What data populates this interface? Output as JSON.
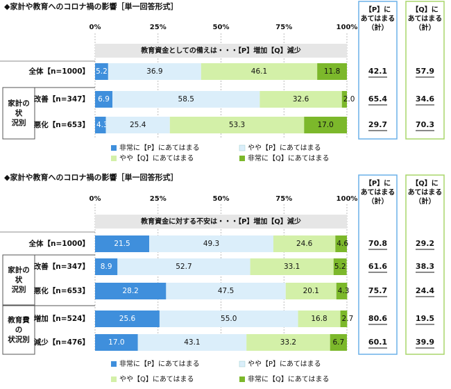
{
  "chart_data": [
    {
      "type": "stacked-bar",
      "title": "◆家計や教育へのコロナ禍の影響［単一回答形式］",
      "subtitle": "教育資金としての備えは・・・【P】増加【Q】減少",
      "axis_ticks": [
        "0%",
        "25%",
        "50%",
        "75%",
        "100%"
      ],
      "xlim": [
        0,
        100
      ],
      "legend": [
        "非常に【P】にあてはまる",
        "やや【P】にあてはまる",
        "やや【Q】にあてはまる",
        "非常に【Q】にあてはまる"
      ],
      "summary_headers": [
        "【P】にあてはまる（計）",
        "【Q】にあてはまる（計）"
      ],
      "groups": [
        {
          "label": "",
          "rows": [
            0
          ]
        },
        {
          "label": "家計の状況別",
          "rows": [
            1,
            2
          ]
        }
      ],
      "rows": [
        {
          "label": "全体【n=1000】",
          "values": [
            5.2,
            36.9,
            46.1,
            11.8
          ],
          "summary": [
            42.1,
            57.9
          ]
        },
        {
          "label": "改善【n=347】",
          "values": [
            6.9,
            58.5,
            32.6,
            2.0
          ],
          "summary": [
            65.4,
            34.6
          ]
        },
        {
          "label": "悪化【n=653】",
          "values": [
            4.3,
            25.4,
            53.3,
            17.0
          ],
          "summary": [
            29.7,
            70.3
          ]
        }
      ]
    },
    {
      "type": "stacked-bar",
      "title": "◆家計や教育へのコロナ禍の影響［単一回答形式］",
      "subtitle": "教育資金に対する不安は・・・【P】増加【Q】減少",
      "axis_ticks": [
        "0%",
        "25%",
        "50%",
        "75%",
        "100%"
      ],
      "xlim": [
        0,
        100
      ],
      "legend": [
        "非常に【P】にあてはまる",
        "やや【P】にあてはまる",
        "やや【Q】にあてはまる",
        "非常に【Q】にあてはまる"
      ],
      "summary_headers": [
        "【P】にあてはまる（計）",
        "【Q】にあてはまる（計）"
      ],
      "groups": [
        {
          "label": "",
          "rows": [
            0
          ]
        },
        {
          "label": "家計の状況別",
          "rows": [
            1,
            2
          ]
        },
        {
          "label": "教育費の状況別",
          "rows": [
            3,
            4
          ]
        }
      ],
      "rows": [
        {
          "label": "全体【n=1000】",
          "values": [
            21.5,
            49.3,
            24.6,
            4.6
          ],
          "summary": [
            70.8,
            29.2
          ]
        },
        {
          "label": "改善【n=347】",
          "values": [
            8.9,
            52.7,
            33.1,
            5.2
          ],
          "summary": [
            61.6,
            38.3
          ]
        },
        {
          "label": "悪化【n=653】",
          "values": [
            28.2,
            47.5,
            20.1,
            4.3
          ],
          "summary": [
            75.7,
            24.4
          ]
        },
        {
          "label": "増加【n=524】",
          "values": [
            25.6,
            55.0,
            16.8,
            2.7
          ],
          "summary": [
            80.6,
            19.5
          ]
        },
        {
          "label": "減少【n=476】",
          "values": [
            17.0,
            43.1,
            33.2,
            6.7
          ],
          "summary": [
            60.1,
            39.9
          ]
        }
      ]
    }
  ],
  "colors": {
    "segments": [
      "#3f8fdc",
      "#dbeefa",
      "#d3f0a8",
      "#7cb82b"
    ],
    "summary_p_border": "#6ab0e8",
    "summary_q_border": "#a8d66a",
    "subtitle_bg": "#e6e6e6",
    "group_border": "#555555"
  }
}
